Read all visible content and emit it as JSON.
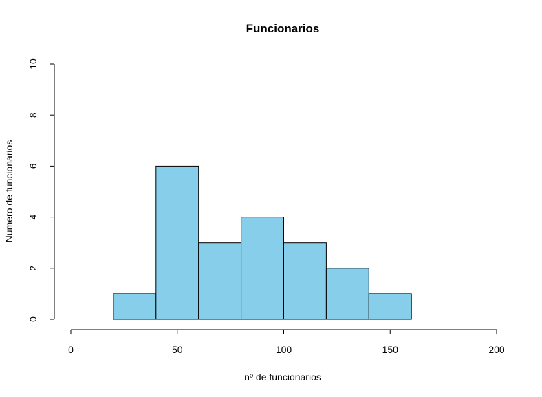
{
  "chart_data": {
    "type": "bar",
    "title": "Funcionarios",
    "xlabel": "nº de funcionarios",
    "ylabel": "Numero de funcionarios",
    "xlim": [
      0,
      200
    ],
    "ylim": [
      0,
      10
    ],
    "bin_edges": [
      20,
      40,
      60,
      80,
      100,
      120,
      140,
      160
    ],
    "values": [
      1,
      6,
      3,
      4,
      3,
      2,
      1
    ],
    "x_ticks": [
      "0",
      "50",
      "100",
      "150",
      "200"
    ],
    "y_ticks": [
      "0",
      "2",
      "4",
      "6",
      "8",
      "10"
    ],
    "bar_color": "#87CEEB",
    "grid": false
  }
}
